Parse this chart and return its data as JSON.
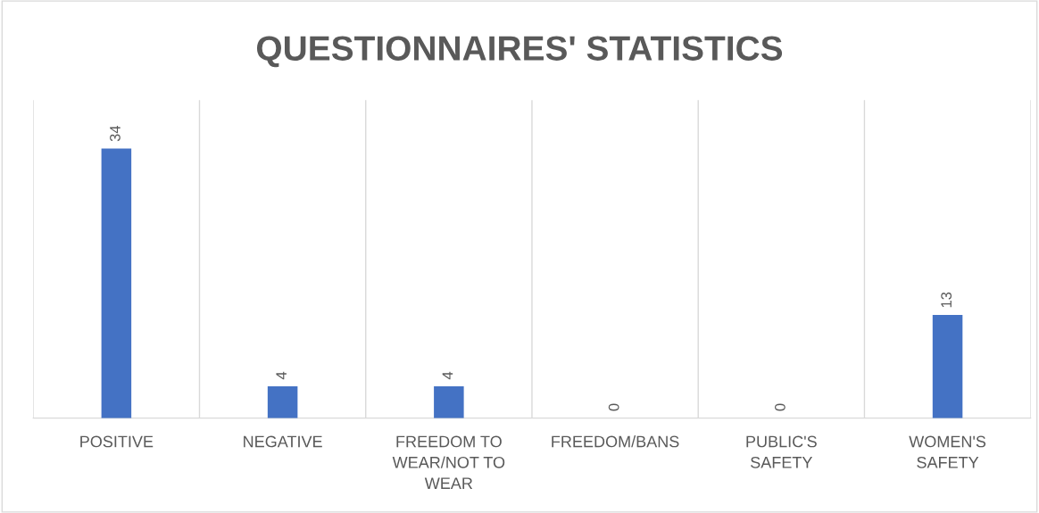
{
  "chart_data": {
    "type": "bar",
    "title": "QUESTIONNAIRES' STATISTICS",
    "categories": [
      "POSITIVE",
      "NEGATIVE",
      "FREEDOM TO\nWEAR/NOT TO\nWEAR",
      "FREEDOM/BANS",
      "PUBLIC'S\nSAFETY",
      "WOMEN'S\nSAFETY"
    ],
    "values": [
      34,
      4,
      4,
      0,
      0,
      13
    ],
    "color": "#4472c4",
    "data_labels": true,
    "grid": "x",
    "tick_labels": "x"
  }
}
